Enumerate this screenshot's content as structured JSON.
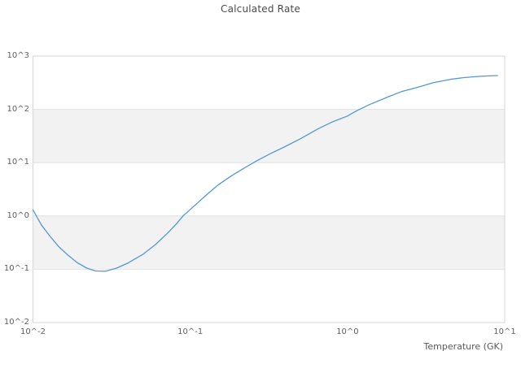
{
  "title": "Calculated Rate",
  "chart_data": {
    "type": "line",
    "title": "Calculated Rate",
    "xlabel": "Temperature (GK)",
    "ylabel": "",
    "x_scale": "log",
    "y_scale": "log",
    "xlim": [
      0.01,
      10
    ],
    "ylim": [
      0.01,
      1000
    ],
    "grid": "horizontal-decades",
    "legend": "none",
    "x_ticks": [
      {
        "label": "10^-2",
        "value": 0.01
      },
      {
        "label": "10^-1",
        "value": 0.1
      },
      {
        "label": "10^0",
        "value": 1
      },
      {
        "label": "10^1",
        "value": 10
      }
    ],
    "y_ticks": [
      {
        "label": "10^3",
        "value": 1000
      },
      {
        "label": "10^2",
        "value": 100
      },
      {
        "label": "10^1",
        "value": 10
      },
      {
        "label": "10^0",
        "value": 1
      },
      {
        "label": "10^-1",
        "value": 0.1
      },
      {
        "label": "10^-2",
        "value": 0.01
      }
    ],
    "shaded_bands": [
      {
        "y_from": 10,
        "y_to": 100
      },
      {
        "y_from": 0.1,
        "y_to": 1
      }
    ],
    "series": [
      {
        "name": "Calculated Rate",
        "x": [
          0.01,
          0.0113,
          0.0128,
          0.0145,
          0.0165,
          0.019,
          0.022,
          0.025,
          0.029,
          0.034,
          0.04,
          0.05,
          0.06,
          0.072,
          0.082,
          0.09,
          0.105,
          0.125,
          0.15,
          0.18,
          0.22,
          0.26,
          0.32,
          0.4,
          0.5,
          0.65,
          0.8,
          1.0,
          1.15,
          1.4,
          1.8,
          2.2,
          2.8,
          3.5,
          4.5,
          5.5,
          7.0,
          8.0,
          9.0
        ],
        "y": [
          1.3,
          0.68,
          0.42,
          0.27,
          0.19,
          0.135,
          0.105,
          0.093,
          0.092,
          0.105,
          0.13,
          0.19,
          0.29,
          0.48,
          0.72,
          1.0,
          1.5,
          2.4,
          3.8,
          5.5,
          7.9,
          10.5,
          14.5,
          20,
          28,
          43,
          58,
          75,
          95,
          125,
          170,
          215,
          260,
          315,
          365,
          395,
          418,
          425,
          430
        ]
      }
    ],
    "colors": {
      "line": "#5497d7",
      "band_fill": "#f2f2f2",
      "grid_line": "#e4e4e4",
      "plot_border": "#d6d6d6",
      "tick_text": "#5f5f5f",
      "title_text": "#4a4a4a",
      "background": "#ffffff"
    }
  }
}
